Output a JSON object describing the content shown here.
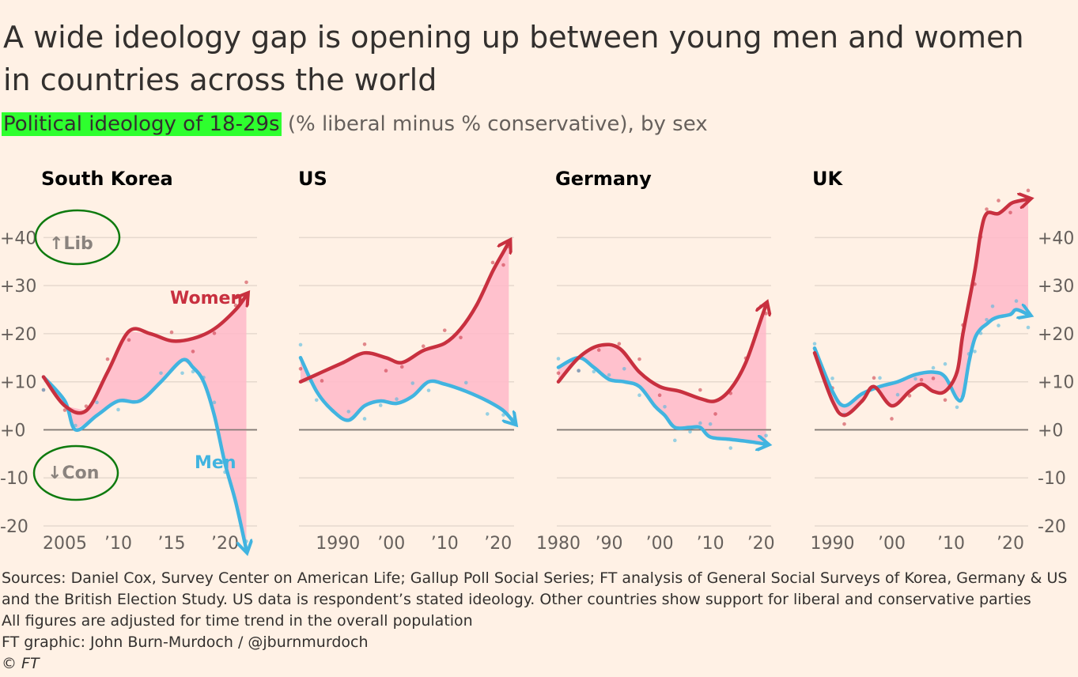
{
  "title_line1": "A wide ideology gap is opening up between young men and women",
  "title_line2": "in countries across the world",
  "subtitle_highlight": "Political ideology of 18-29s",
  "subtitle_rest": " (% liberal minus % conservative), by sex",
  "colors": {
    "women": "#c8303f",
    "men": "#41b4e0",
    "gap": "#ffb9c9",
    "annot": "#0e7a0e",
    "background": "#fff1e5"
  },
  "annotations": {
    "lib": "↑Lib",
    "con": "↓Con"
  },
  "series_labels": {
    "women": "Women",
    "men": "Men"
  },
  "chart_data": [
    {
      "type": "line",
      "title": "South Korea",
      "xlim": [
        2003,
        2023
      ],
      "ylim": [
        -20,
        45
      ],
      "yticks": [
        -20,
        -10,
        0,
        10,
        20,
        30,
        40
      ],
      "ytick_labels": [
        "-20",
        "-10",
        "+0",
        "+10",
        "+20",
        "+30",
        "+40"
      ],
      "xticks": [
        2005,
        2010,
        2015,
        2020
      ],
      "xtick_labels": [
        "2005",
        "’10",
        "’15",
        "’20"
      ],
      "series": [
        {
          "name": "Women",
          "x": [
            2003,
            2005,
            2007,
            2009,
            2011,
            2013,
            2015,
            2017,
            2019,
            2021,
            2022
          ],
          "values": [
            11,
            5,
            4,
            12,
            20.5,
            20,
            18.5,
            19,
            21,
            25,
            28
          ]
        },
        {
          "name": "Men",
          "x": [
            2003,
            2005,
            2006,
            2008,
            2010,
            2012,
            2014,
            2016,
            2017,
            2018,
            2019,
            2020,
            2021,
            2022
          ],
          "values": [
            11,
            6,
            0,
            3,
            6,
            6,
            10,
            14.5,
            13,
            10,
            3,
            -7,
            -15,
            -25
          ]
        }
      ]
    },
    {
      "type": "line",
      "title": "US",
      "xlim": [
        1983,
        2023
      ],
      "ylim": [
        -20,
        45
      ],
      "yticks": [
        -20,
        -10,
        0,
        10,
        20,
        30,
        40
      ],
      "xticks": [
        1990,
        2000,
        2010,
        2020
      ],
      "xtick_labels": [
        "1990",
        "’00",
        "’10",
        "’20"
      ],
      "series": [
        {
          "name": "Women",
          "x": [
            1983,
            1987,
            1991,
            1995,
            1999,
            2002,
            2006,
            2010,
            2013,
            2016,
            2019,
            2021,
            2022
          ],
          "values": [
            10,
            12,
            14,
            16,
            15,
            14,
            16.5,
            18,
            21,
            26,
            33,
            37,
            39
          ]
        },
        {
          "name": "Men",
          "x": [
            1983,
            1986,
            1989,
            1992,
            1995,
            1998,
            2001,
            2004,
            2007,
            2010,
            2014,
            2018,
            2021,
            2023
          ],
          "values": [
            15,
            8,
            4,
            2,
            5,
            6,
            5.5,
            7,
            10,
            9.5,
            8,
            6,
            4,
            1.5
          ]
        }
      ]
    },
    {
      "type": "line",
      "title": "Germany",
      "xlim": [
        1980,
        2022
      ],
      "ylim": [
        -20,
        45
      ],
      "yticks": [
        -20,
        -10,
        0,
        10,
        20,
        30,
        40
      ],
      "xticks": [
        1980,
        1990,
        2000,
        2010,
        2020
      ],
      "xtick_labels": [
        "1980",
        "’90",
        "’00",
        "’10",
        "’20"
      ],
      "series": [
        {
          "name": "Women",
          "x": [
            1980,
            1984,
            1988,
            1992,
            1996,
            2000,
            2004,
            2008,
            2011,
            2014,
            2017,
            2020,
            2021
          ],
          "values": [
            10,
            15,
            17.5,
            17,
            12,
            9,
            8,
            6.5,
            6,
            8.5,
            14,
            23,
            26
          ]
        },
        {
          "name": "Men",
          "x": [
            1980,
            1984,
            1987,
            1990,
            1993,
            1996,
            1999,
            2001,
            2003,
            2006,
            2008,
            2010,
            2014,
            2018,
            2021
          ],
          "values": [
            13,
            15,
            13,
            10.5,
            10,
            9,
            5,
            3,
            0.5,
            0.5,
            0.5,
            -1.5,
            -2,
            -2.5,
            -3
          ]
        }
      ]
    },
    {
      "type": "line",
      "title": "UK",
      "xlim": [
        1987,
        2023
      ],
      "ylim": [
        -20,
        45
      ],
      "yticks": [
        -20,
        -10,
        0,
        10,
        20,
        30,
        40
      ],
      "ytick_labels": [
        "-20",
        "-10",
        "+0",
        "+10",
        "+20",
        "+30",
        "+40"
      ],
      "xticks": [
        1990,
        2000,
        2010,
        2020
      ],
      "xtick_labels": [
        "1990",
        "’00",
        "’10",
        "’20"
      ],
      "series": [
        {
          "name": "Women",
          "x": [
            1987,
            1990,
            1992,
            1995,
            1997,
            2000,
            2003,
            2005,
            2007,
            2009,
            2011,
            2012,
            2014,
            2015,
            2016,
            2018,
            2020,
            2021,
            2023
          ],
          "values": [
            16,
            6,
            3,
            6,
            9,
            5,
            8,
            9.5,
            8,
            8,
            12,
            20,
            33,
            41,
            45,
            45,
            47,
            47.5,
            48
          ]
        },
        {
          "name": "Men",
          "x": [
            1987,
            1990,
            1992,
            1995,
            1998,
            2001,
            2004,
            2007,
            2009,
            2011,
            2012,
            2013,
            2014,
            2015,
            2016,
            2017,
            2018,
            2020,
            2021,
            2023
          ],
          "values": [
            17,
            8,
            5,
            7.5,
            9,
            10,
            11.5,
            12,
            11,
            6.5,
            7,
            14,
            19,
            21,
            22,
            23,
            23.5,
            24,
            25,
            24
          ]
        }
      ]
    }
  ],
  "footer": {
    "line1": "Sources: Daniel Cox, Survey Center on American Life; Gallup Poll Social Series; FT analysis of General Social Surveys of Korea, Germany & US",
    "line2": "and the British Election Study. US data is respondent’s stated ideology. Other countries show support for liberal and conservative parties",
    "line3": "All figures are adjusted for time trend in the overall population",
    "line4": "FT graphic: John Burn-Murdoch / @jburnmurdoch",
    "line5": "© FT"
  }
}
